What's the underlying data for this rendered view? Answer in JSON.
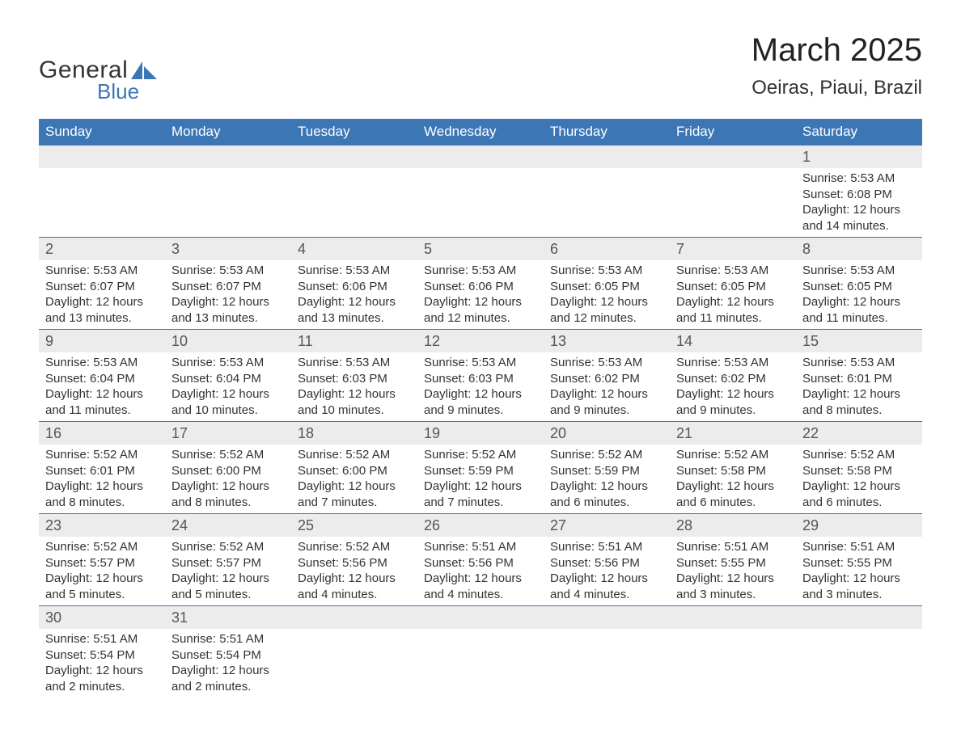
{
  "logo": {
    "word1": "General",
    "word2": "Blue",
    "brand_color": "#3d76b5"
  },
  "title": {
    "month": "March 2025",
    "location": "Oeiras, Piaui, Brazil"
  },
  "colors": {
    "header_bg": "#3d76b5",
    "header_text": "#ffffff",
    "daynum_bg": "#ececec",
    "row_border": "#3d76b5",
    "body_text": "#333333",
    "page_bg": "#ffffff"
  },
  "day_names": [
    "Sunday",
    "Monday",
    "Tuesday",
    "Wednesday",
    "Thursday",
    "Friday",
    "Saturday"
  ],
  "layout": {
    "columns": 7,
    "first_day_column_index": 6,
    "num_days": 31
  },
  "labels": {
    "sunrise": "Sunrise: ",
    "sunset": "Sunset: ",
    "daylight_prefix": "Daylight: ",
    "daylight_hours_word": " hours",
    "daylight_and": "and ",
    "daylight_minutes_suffix": " minutes."
  },
  "days": {
    "1": {
      "sunrise": "5:53 AM",
      "sunset": "6:08 PM",
      "dl_h": 12,
      "dl_m": 14
    },
    "2": {
      "sunrise": "5:53 AM",
      "sunset": "6:07 PM",
      "dl_h": 12,
      "dl_m": 13
    },
    "3": {
      "sunrise": "5:53 AM",
      "sunset": "6:07 PM",
      "dl_h": 12,
      "dl_m": 13
    },
    "4": {
      "sunrise": "5:53 AM",
      "sunset": "6:06 PM",
      "dl_h": 12,
      "dl_m": 13
    },
    "5": {
      "sunrise": "5:53 AM",
      "sunset": "6:06 PM",
      "dl_h": 12,
      "dl_m": 12
    },
    "6": {
      "sunrise": "5:53 AM",
      "sunset": "6:05 PM",
      "dl_h": 12,
      "dl_m": 12
    },
    "7": {
      "sunrise": "5:53 AM",
      "sunset": "6:05 PM",
      "dl_h": 12,
      "dl_m": 11
    },
    "8": {
      "sunrise": "5:53 AM",
      "sunset": "6:05 PM",
      "dl_h": 12,
      "dl_m": 11
    },
    "9": {
      "sunrise": "5:53 AM",
      "sunset": "6:04 PM",
      "dl_h": 12,
      "dl_m": 11
    },
    "10": {
      "sunrise": "5:53 AM",
      "sunset": "6:04 PM",
      "dl_h": 12,
      "dl_m": 10
    },
    "11": {
      "sunrise": "5:53 AM",
      "sunset": "6:03 PM",
      "dl_h": 12,
      "dl_m": 10
    },
    "12": {
      "sunrise": "5:53 AM",
      "sunset": "6:03 PM",
      "dl_h": 12,
      "dl_m": 9
    },
    "13": {
      "sunrise": "5:53 AM",
      "sunset": "6:02 PM",
      "dl_h": 12,
      "dl_m": 9
    },
    "14": {
      "sunrise": "5:53 AM",
      "sunset": "6:02 PM",
      "dl_h": 12,
      "dl_m": 9
    },
    "15": {
      "sunrise": "5:53 AM",
      "sunset": "6:01 PM",
      "dl_h": 12,
      "dl_m": 8
    },
    "16": {
      "sunrise": "5:52 AM",
      "sunset": "6:01 PM",
      "dl_h": 12,
      "dl_m": 8
    },
    "17": {
      "sunrise": "5:52 AM",
      "sunset": "6:00 PM",
      "dl_h": 12,
      "dl_m": 8
    },
    "18": {
      "sunrise": "5:52 AM",
      "sunset": "6:00 PM",
      "dl_h": 12,
      "dl_m": 7
    },
    "19": {
      "sunrise": "5:52 AM",
      "sunset": "5:59 PM",
      "dl_h": 12,
      "dl_m": 7
    },
    "20": {
      "sunrise": "5:52 AM",
      "sunset": "5:59 PM",
      "dl_h": 12,
      "dl_m": 6
    },
    "21": {
      "sunrise": "5:52 AM",
      "sunset": "5:58 PM",
      "dl_h": 12,
      "dl_m": 6
    },
    "22": {
      "sunrise": "5:52 AM",
      "sunset": "5:58 PM",
      "dl_h": 12,
      "dl_m": 6
    },
    "23": {
      "sunrise": "5:52 AM",
      "sunset": "5:57 PM",
      "dl_h": 12,
      "dl_m": 5
    },
    "24": {
      "sunrise": "5:52 AM",
      "sunset": "5:57 PM",
      "dl_h": 12,
      "dl_m": 5
    },
    "25": {
      "sunrise": "5:52 AM",
      "sunset": "5:56 PM",
      "dl_h": 12,
      "dl_m": 4
    },
    "26": {
      "sunrise": "5:51 AM",
      "sunset": "5:56 PM",
      "dl_h": 12,
      "dl_m": 4
    },
    "27": {
      "sunrise": "5:51 AM",
      "sunset": "5:56 PM",
      "dl_h": 12,
      "dl_m": 4
    },
    "28": {
      "sunrise": "5:51 AM",
      "sunset": "5:55 PM",
      "dl_h": 12,
      "dl_m": 3
    },
    "29": {
      "sunrise": "5:51 AM",
      "sunset": "5:55 PM",
      "dl_h": 12,
      "dl_m": 3
    },
    "30": {
      "sunrise": "5:51 AM",
      "sunset": "5:54 PM",
      "dl_h": 12,
      "dl_m": 2
    },
    "31": {
      "sunrise": "5:51 AM",
      "sunset": "5:54 PM",
      "dl_h": 12,
      "dl_m": 2
    }
  }
}
